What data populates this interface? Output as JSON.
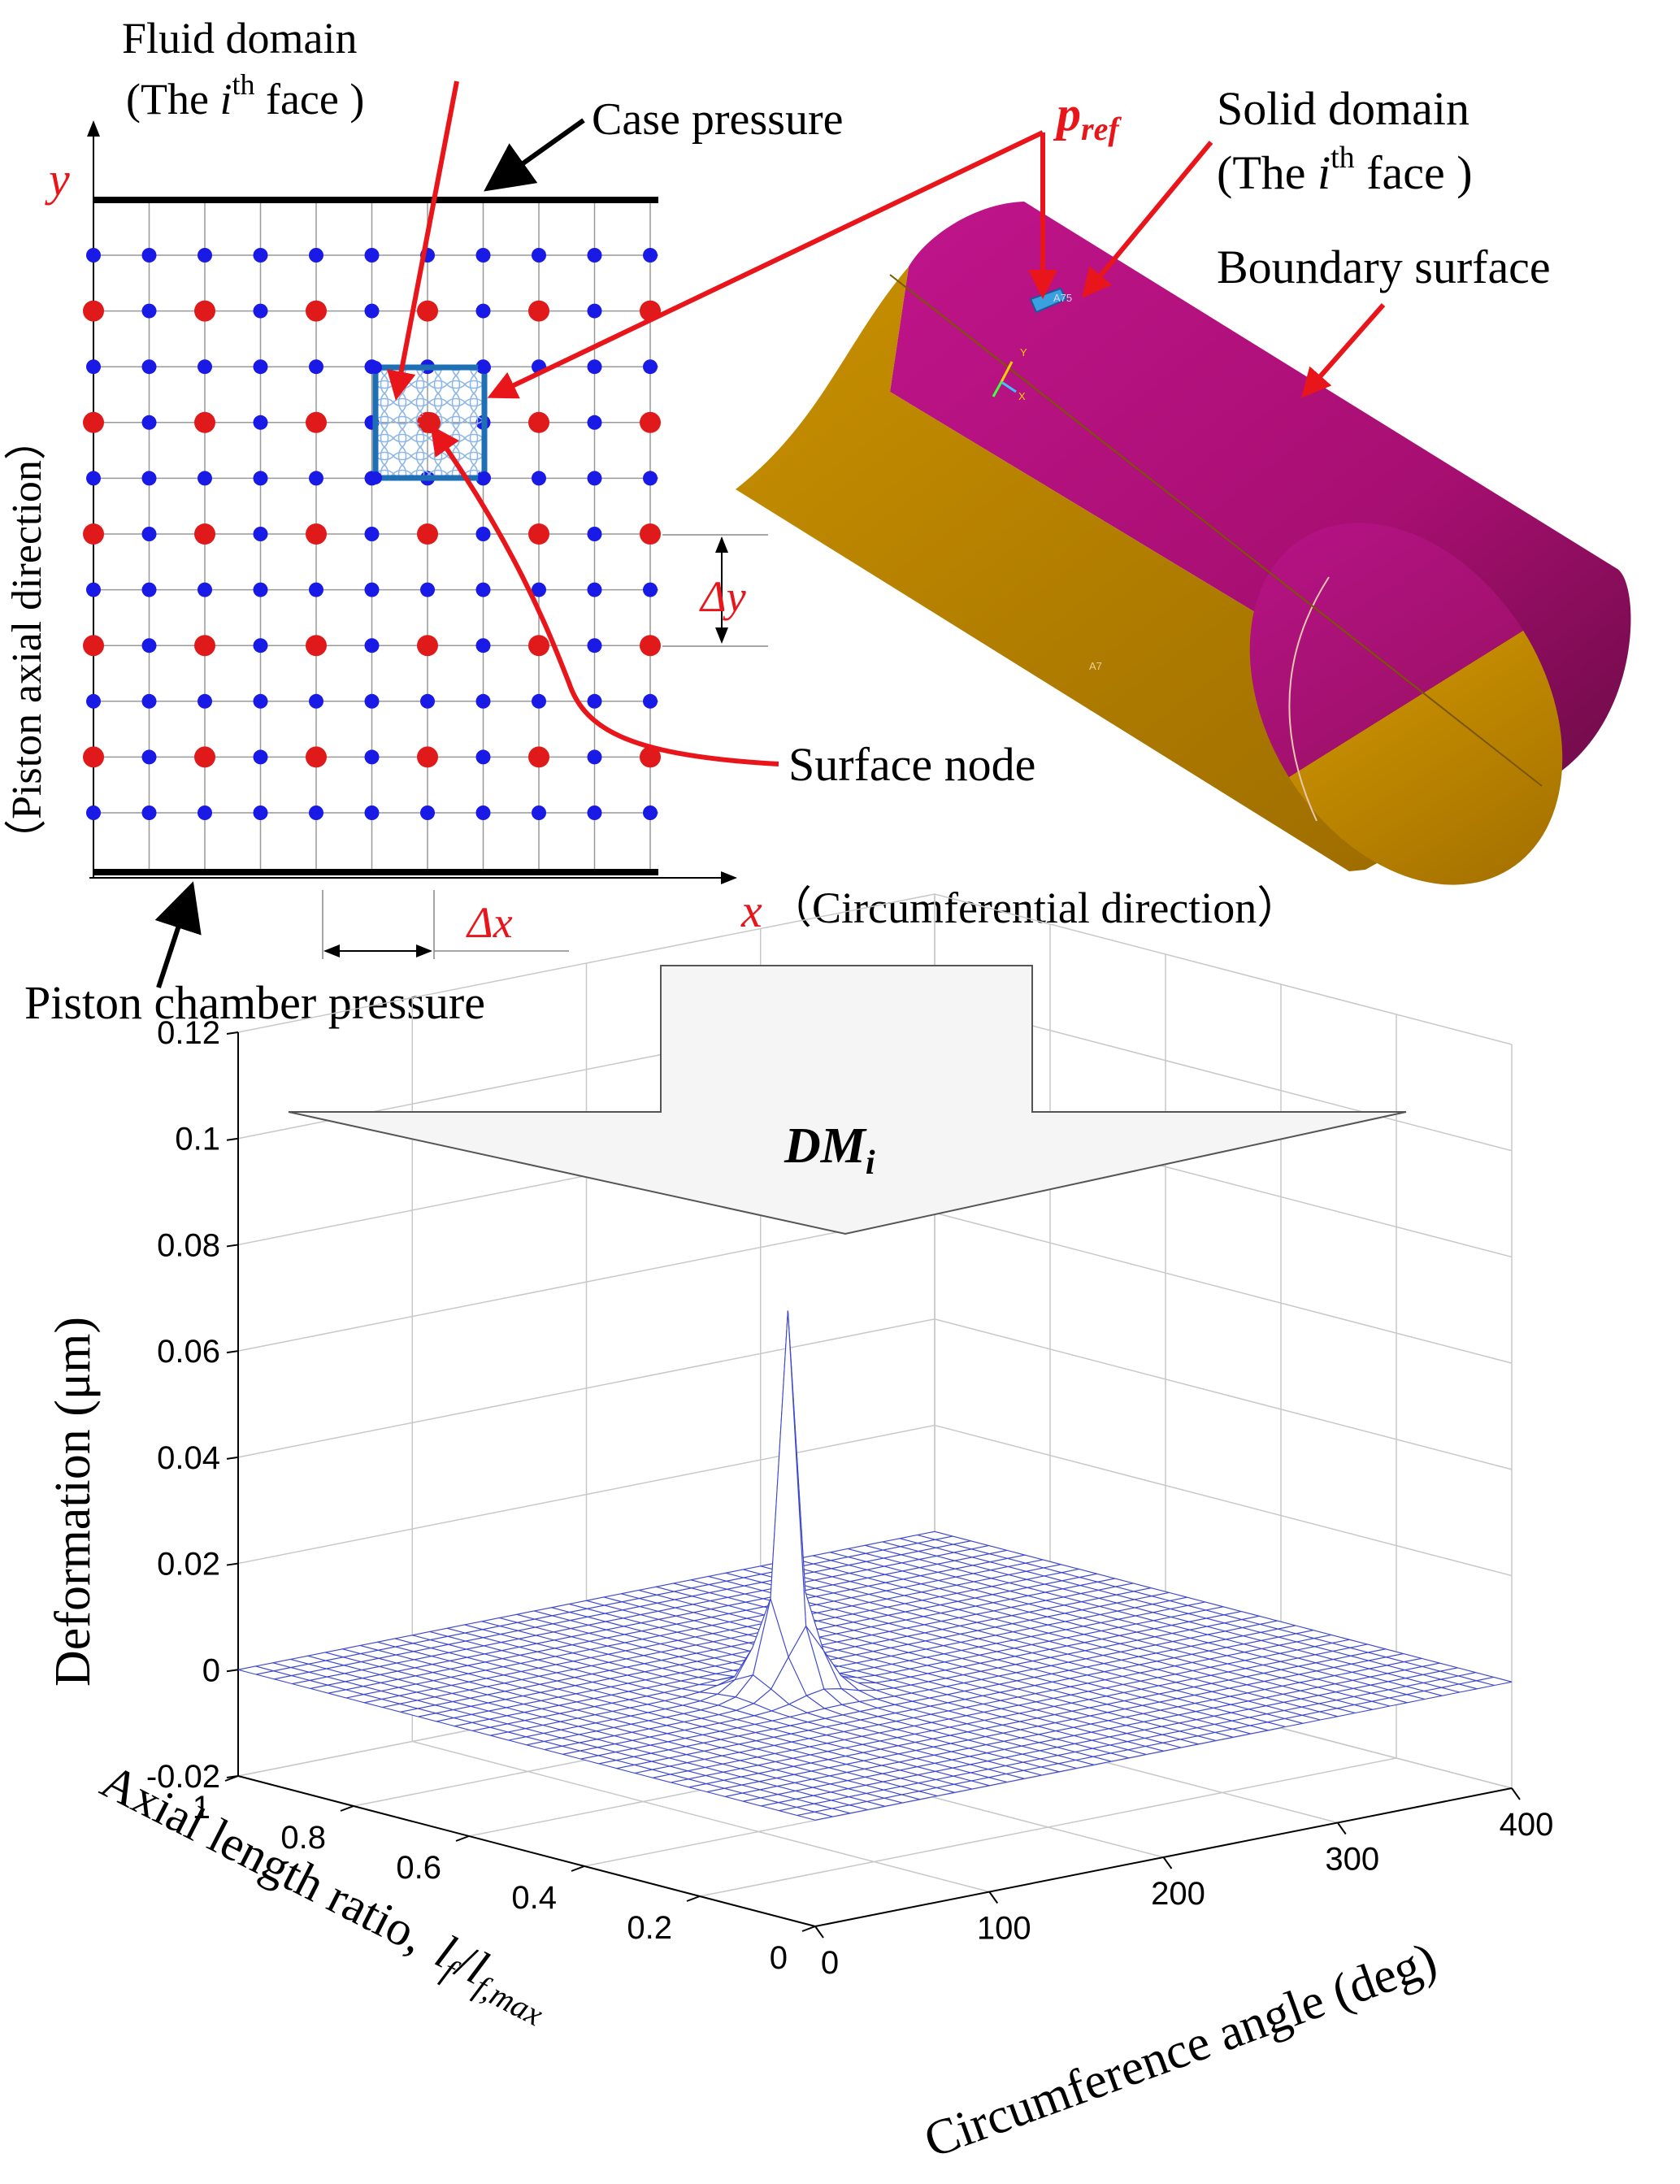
{
  "grid_panel": {
    "y_axis_symbol": "y",
    "y_axis_label": "（Piston axial direction）",
    "x_axis_symbol": "x",
    "x_axis_label": "（Circumferential direction）",
    "delta_x": "Δx",
    "delta_y": "Δy",
    "fluid_domain_line1": "Fluid domain",
    "fluid_domain_line2_pre": "(The ",
    "fluid_domain_line2_i": "i",
    "fluid_domain_line2_sup": "th",
    "fluid_domain_line2_post": " face )",
    "case_pressure": "Case pressure",
    "piston_chamber_pressure": "Piston chamber pressure",
    "surface_node": "Surface node"
  },
  "solid_panel": {
    "pref_main": "p",
    "pref_sub": "ref",
    "solid_domain_line1": "Solid domain",
    "solid_domain_line2_pre": "(The ",
    "solid_domain_line2_i": "i",
    "solid_domain_line2_sup": "th",
    "solid_domain_line2_post": " face )",
    "boundary_surface": "Boundary surface",
    "tag_a75": "A75",
    "tag_a7": "A7",
    "triad_y": "Y",
    "triad_x": "X"
  },
  "transfer_arrow": {
    "label_main": "DM",
    "label_sub": "i"
  },
  "chart_data": {
    "type": "surface",
    "zlabel": "Deformation (μm)",
    "xlabel": "Circumference angle (deg)",
    "ylabel_text": "Axial length ratio,",
    "ylabel_math_l": "l",
    "ylabel_math_f": "f",
    "ylabel_math_slash": "/",
    "ylabel_math_fmax": "f,max",
    "z_ticks": [
      "0.12",
      "0.1",
      "0.08",
      "0.06",
      "0.04",
      "0.02",
      "0",
      "-0.02"
    ],
    "x_ticks": [
      "0",
      "100",
      "200",
      "300",
      "400"
    ],
    "y_ticks": [
      "0",
      "0.2",
      "0.4",
      "0.6",
      "0.8",
      "1"
    ],
    "zlim": [
      -0.02,
      0.12
    ],
    "xlim": [
      0,
      400
    ],
    "ylim": [
      0,
      1
    ],
    "peak": {
      "circumference_angle": 150,
      "axial_ratio": 0.5,
      "deformation": 0.072
    },
    "base_deformation": 0,
    "mesh_color": "#3f48cc"
  },
  "colors": {
    "red": "#e8151b",
    "blue_node": "#1a1ae6",
    "red_node": "#e01a1a",
    "face_blue": "#2b7ac0",
    "magenta": "#b0107a",
    "gold": "#c28a00"
  }
}
